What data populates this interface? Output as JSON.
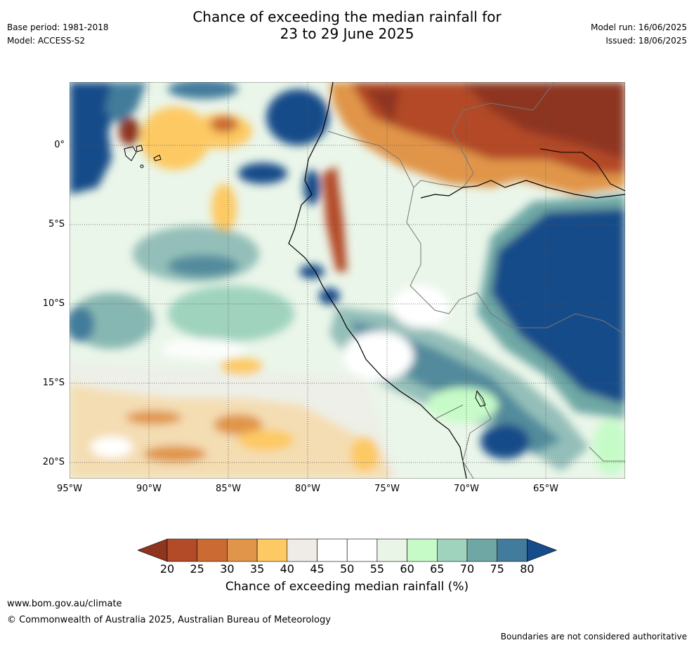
{
  "header": {
    "title_line1": "Chance of exceeding the median rainfall for",
    "title_line2": "23 to 29 June 2025",
    "base_period": "Base period: 1981-2018",
    "model": "Model: ACCESS-S2",
    "model_run": "Model run: 16/06/2025",
    "issued": "Issued: 18/06/2025"
  },
  "map": {
    "lat_labels": [
      "0°",
      "5°S",
      "10°S",
      "15°S",
      "20°S"
    ],
    "lon_labels": [
      "95°W",
      "90°W",
      "85°W",
      "80°W",
      "75°W",
      "70°W",
      "65°W"
    ]
  },
  "colorbar": {
    "ticks": [
      "20",
      "25",
      "30",
      "35",
      "40",
      "45",
      "50",
      "55",
      "60",
      "65",
      "70",
      "75",
      "80"
    ],
    "colors": [
      "#8e3520",
      "#b34a28",
      "#cb6a33",
      "#e0954a",
      "#fdc964",
      "#efebe6",
      "#ffffff",
      "#ffffff",
      "#e9f5e6",
      "#c6fbc8",
      "#9fd3bd",
      "#6ea7a4",
      "#427b9b",
      "#164c89"
    ],
    "label": "Chance of exceeding median rainfall (%)"
  },
  "footer": {
    "url": "www.bom.gov.au/climate",
    "copyright": "© Commonwealth of Australia 2025, Australian Bureau of Meteorology",
    "disclaimer": "Boundaries are not considered authoritative"
  }
}
